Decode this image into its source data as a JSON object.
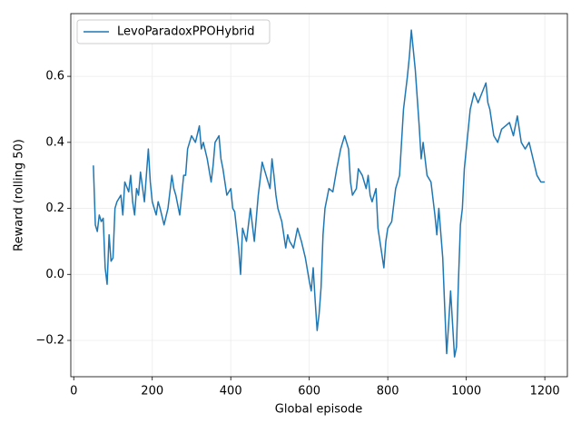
{
  "chart_data": {
    "type": "line",
    "xlabel": "Global episode",
    "ylabel": "Reward (rolling 50)",
    "x": [
      50,
      55,
      60,
      65,
      70,
      75,
      80,
      85,
      90,
      95,
      100,
      105,
      110,
      120,
      125,
      130,
      140,
      145,
      150,
      155,
      160,
      165,
      170,
      180,
      190,
      195,
      200,
      210,
      215,
      220,
      230,
      240,
      250,
      255,
      260,
      270,
      280,
      285,
      290,
      300,
      310,
      320,
      325,
      330,
      340,
      350,
      355,
      360,
      370,
      375,
      380,
      390,
      400,
      405,
      410,
      420,
      425,
      430,
      440,
      450,
      460,
      470,
      480,
      490,
      500,
      505,
      510,
      515,
      520,
      530,
      540,
      545,
      550,
      560,
      570,
      580,
      590,
      600,
      605,
      610,
      615,
      620,
      625,
      630,
      635,
      640,
      650,
      660,
      670,
      680,
      690,
      700,
      705,
      710,
      720,
      725,
      735,
      745,
      750,
      755,
      760,
      770,
      775,
      780,
      790,
      795,
      800,
      810,
      820,
      830,
      840,
      850,
      855,
      860,
      865,
      870,
      880,
      885,
      890,
      900,
      910,
      920,
      925,
      930,
      940,
      945,
      950,
      955,
      960,
      965,
      970,
      975,
      980,
      985,
      990,
      995,
      1000,
      1010,
      1020,
      1030,
      1040,
      1050,
      1055,
      1060,
      1070,
      1080,
      1090,
      1100,
      1110,
      1120,
      1130,
      1140,
      1150,
      1160,
      1170,
      1180,
      1190,
      1200
    ],
    "series": [
      {
        "name": "LevoParadoxPPOHybrid",
        "color": "#1f77b4",
        "values": [
          0.33,
          0.15,
          0.13,
          0.18,
          0.16,
          0.17,
          0.02,
          -0.03,
          0.12,
          0.04,
          0.05,
          0.2,
          0.22,
          0.24,
          0.18,
          0.28,
          0.25,
          0.3,
          0.22,
          0.18,
          0.26,
          0.24,
          0.31,
          0.22,
          0.38,
          0.28,
          0.22,
          0.18,
          0.22,
          0.2,
          0.15,
          0.2,
          0.3,
          0.26,
          0.24,
          0.18,
          0.3,
          0.3,
          0.38,
          0.42,
          0.4,
          0.45,
          0.38,
          0.4,
          0.35,
          0.28,
          0.33,
          0.4,
          0.42,
          0.35,
          0.32,
          0.24,
          0.26,
          0.2,
          0.19,
          0.08,
          0.0,
          0.14,
          0.1,
          0.2,
          0.1,
          0.24,
          0.34,
          0.3,
          0.26,
          0.35,
          0.3,
          0.24,
          0.2,
          0.16,
          0.08,
          0.12,
          0.1,
          0.08,
          0.14,
          0.1,
          0.05,
          -0.02,
          -0.05,
          0.02,
          -0.08,
          -0.17,
          -0.12,
          -0.04,
          0.12,
          0.2,
          0.26,
          0.25,
          0.32,
          0.38,
          0.42,
          0.38,
          0.28,
          0.24,
          0.26,
          0.32,
          0.3,
          0.26,
          0.3,
          0.24,
          0.22,
          0.26,
          0.14,
          0.1,
          0.02,
          0.1,
          0.14,
          0.16,
          0.26,
          0.3,
          0.5,
          0.6,
          0.66,
          0.74,
          0.68,
          0.62,
          0.45,
          0.35,
          0.4,
          0.3,
          0.28,
          0.18,
          0.12,
          0.2,
          0.05,
          -0.1,
          -0.24,
          -0.15,
          -0.05,
          -0.15,
          -0.25,
          -0.22,
          -0.02,
          0.15,
          0.2,
          0.32,
          0.38,
          0.5,
          0.55,
          0.52,
          0.55,
          0.58,
          0.52,
          0.5,
          0.42,
          0.4,
          0.44,
          0.45,
          0.46,
          0.42,
          0.48,
          0.4,
          0.38,
          0.4,
          0.35,
          0.3,
          0.28,
          0.28
        ]
      }
    ],
    "xlim": [
      -7.5,
      1257.5
    ],
    "xticks": [
      0,
      200,
      400,
      600,
      800,
      1000,
      1200
    ],
    "ylim": [
      -0.31,
      0.79
    ],
    "yticks": [
      {
        "value": -0.2,
        "label": "−0.2"
      },
      {
        "value": 0.0,
        "label": "0.0"
      },
      {
        "value": 0.2,
        "label": "0.2"
      },
      {
        "value": 0.4,
        "label": "0.4"
      },
      {
        "value": 0.6,
        "label": "0.6"
      }
    ],
    "grid": true,
    "legend": "upper left"
  }
}
